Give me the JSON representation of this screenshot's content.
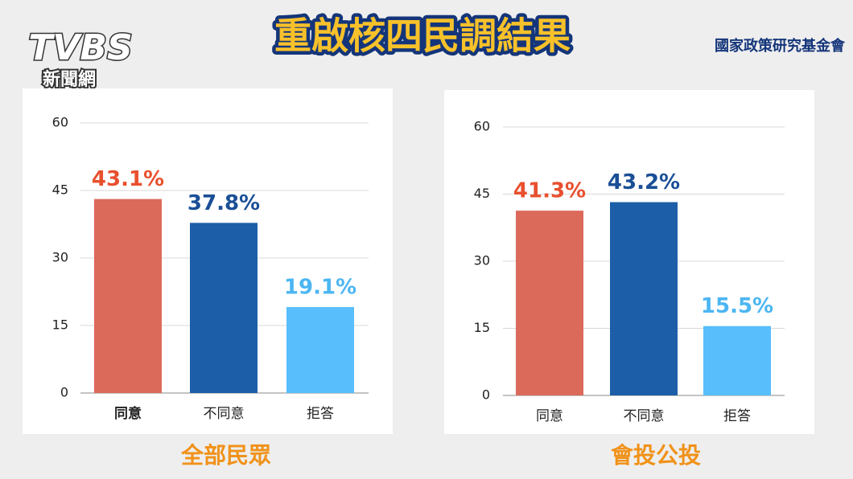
{
  "header": {
    "logo": "TVBS",
    "logo_sub": "新聞網",
    "title": "重啟核四民調結果",
    "source": "國家政策研究基金會"
  },
  "chart_data": [
    {
      "type": "bar",
      "title": "全部民眾",
      "categories": [
        "同意",
        "不同意",
        "拒答"
      ],
      "values": [
        43.1,
        37.8,
        19.1
      ],
      "value_labels": [
        "43.1%",
        "37.8%",
        "19.1%"
      ],
      "colors": [
        "#dc6a5b",
        "#1c5ea8",
        "#58befc"
      ],
      "label_colors": [
        "#e8502e",
        "#1a4f96",
        "#4cb6f2"
      ],
      "ylim": [
        0,
        60
      ],
      "yticks": [
        0,
        15,
        30,
        45,
        60
      ],
      "grid": true
    },
    {
      "type": "bar",
      "title": "會投公投",
      "categories": [
        "同意",
        "不同意",
        "拒答"
      ],
      "values": [
        41.3,
        43.2,
        15.5
      ],
      "value_labels": [
        "41.3%",
        "43.2%",
        "15.5%"
      ],
      "colors": [
        "#dc6a5b",
        "#1c5ea8",
        "#58befc"
      ],
      "label_colors": [
        "#e8502e",
        "#1a4f96",
        "#4cb6f2"
      ],
      "ylim": [
        0,
        60
      ],
      "yticks": [
        0,
        15,
        30,
        45,
        60
      ],
      "grid": true
    }
  ]
}
